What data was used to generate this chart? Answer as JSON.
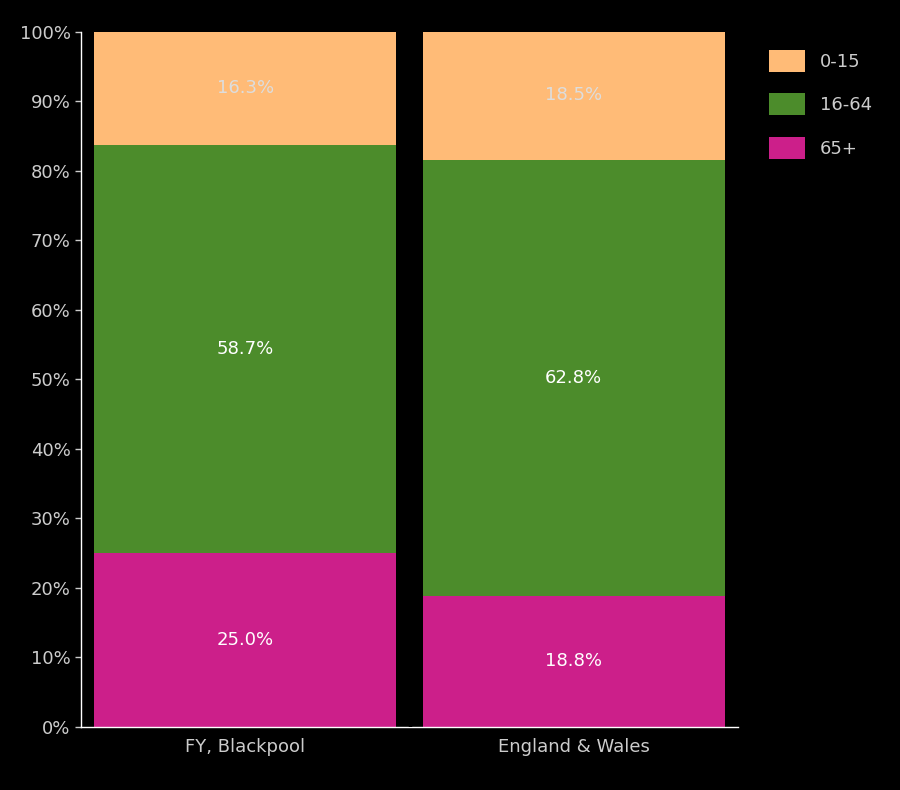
{
  "categories": [
    "FY, Blackpool",
    "England & Wales"
  ],
  "segments": {
    "65+": [
      25.0,
      18.8
    ],
    "16-64": [
      58.7,
      62.8
    ],
    "0-15": [
      16.3,
      18.5
    ]
  },
  "colors": {
    "0-15": "#FFBB77",
    "16-64": "#4C8C2B",
    "65+": "#CC1F8A"
  },
  "label_colors": {
    "0-15": "#DDDDDD",
    "16-64": "#FFFFFF",
    "65+": "#FFFFFF"
  },
  "ylim": [
    0,
    100
  ],
  "ytick_labels": [
    "0%",
    "10%",
    "20%",
    "30%",
    "40%",
    "50%",
    "60%",
    "70%",
    "80%",
    "90%",
    "100%"
  ],
  "ytick_values": [
    0,
    10,
    20,
    30,
    40,
    50,
    60,
    70,
    80,
    90,
    100
  ],
  "background_color": "#000000",
  "axes_color": "#FFFFFF",
  "text_color": "#CCCCCC",
  "bar_width": 0.92,
  "legend_order": [
    "0-15",
    "16-64",
    "65+"
  ],
  "label_fontsize": 13,
  "tick_fontsize": 13,
  "legend_fontsize": 13
}
